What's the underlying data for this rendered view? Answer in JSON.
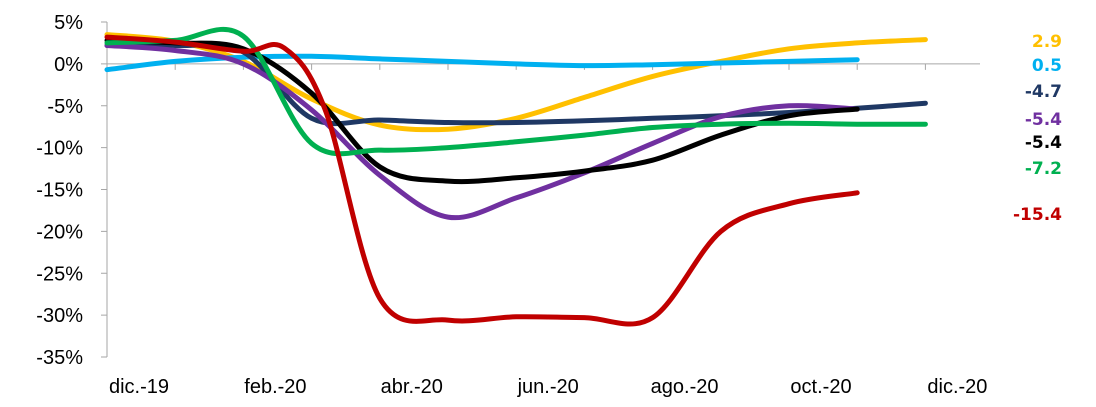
{
  "chart_data": {
    "type": "line",
    "title": "",
    "xlabel": "",
    "ylabel": "",
    "ylim": [
      -35,
      5
    ],
    "yticks": [
      5,
      0,
      -5,
      -10,
      -15,
      -20,
      -25,
      -30,
      -35
    ],
    "ytick_labels": [
      "5%",
      "0%",
      "-5%",
      "-10%",
      "-15%",
      "-20%",
      "-25%",
      "-30%",
      "-35%"
    ],
    "xlim": [
      0,
      12
    ],
    "xticks": [
      0,
      2,
      4,
      6,
      8,
      10,
      12
    ],
    "xtick_labels": [
      "dic.-19",
      "feb.-20",
      "abr.-20",
      "jun.-20",
      "ago.-20",
      "oct.-20",
      "dic.-20"
    ],
    "grid": false,
    "legend": "none",
    "series": [
      {
        "color": "#FFC000",
        "end_label": "2.9",
        "points": [
          [
            0,
            3.5
          ],
          [
            1,
            2.7
          ],
          [
            2,
            0.3
          ],
          [
            3,
            -4.2
          ],
          [
            4,
            -7.3
          ],
          [
            5,
            -7.8
          ],
          [
            6,
            -6.5
          ],
          [
            7,
            -4.0
          ],
          [
            8,
            -1.5
          ],
          [
            9,
            0.3
          ],
          [
            10,
            1.8
          ],
          [
            11,
            2.5
          ],
          [
            12,
            2.9
          ]
        ]
      },
      {
        "color": "#00B0F0",
        "end_label": "0.5",
        "points": [
          [
            0,
            -0.7
          ],
          [
            1,
            0.3
          ],
          [
            2,
            0.8
          ],
          [
            3,
            0.9
          ],
          [
            4,
            0.6
          ],
          [
            5,
            0.3
          ],
          [
            6,
            0.0
          ],
          [
            7,
            -0.2
          ],
          [
            8,
            -0.1
          ],
          [
            9,
            0.1
          ],
          [
            10,
            0.3
          ],
          [
            11,
            0.5
          ]
        ]
      },
      {
        "color": "#1F3864",
        "end_label": "-4.7",
        "points": [
          [
            0,
            2.2
          ],
          [
            1,
            2.2
          ],
          [
            2,
            1.4
          ],
          [
            3,
            -6.5
          ],
          [
            4,
            -6.7
          ],
          [
            5,
            -7.0
          ],
          [
            6,
            -7.0
          ],
          [
            7,
            -6.8
          ],
          [
            8,
            -6.5
          ],
          [
            9,
            -6.2
          ],
          [
            10,
            -5.8
          ],
          [
            11,
            -5.3
          ],
          [
            12,
            -4.7
          ]
        ]
      },
      {
        "color": "#7030A0",
        "end_label": "-5.4",
        "points": [
          [
            0,
            2.2
          ],
          [
            1,
            1.6
          ],
          [
            2,
            0.0
          ],
          [
            3,
            -5.5
          ],
          [
            4,
            -13.3
          ],
          [
            5,
            -18.3
          ],
          [
            6,
            -16.0
          ],
          [
            7,
            -13.0
          ],
          [
            8,
            -9.5
          ],
          [
            9,
            -6.3
          ],
          [
            10,
            -5.0
          ],
          [
            11,
            -5.4
          ]
        ]
      },
      {
        "color": "#000000",
        "end_label": "-5.4",
        "points": [
          [
            0,
            2.8
          ],
          [
            1,
            2.5
          ],
          [
            2,
            1.8
          ],
          [
            3,
            -3.5
          ],
          [
            4,
            -12.3
          ],
          [
            5,
            -14.0
          ],
          [
            6,
            -13.6
          ],
          [
            7,
            -12.8
          ],
          [
            8,
            -11.5
          ],
          [
            9,
            -8.5
          ],
          [
            10,
            -6.2
          ],
          [
            11,
            -5.4
          ]
        ]
      },
      {
        "color": "#00B050",
        "end_label": "-7.2",
        "points": [
          [
            0,
            2.5
          ],
          [
            1,
            2.8
          ],
          [
            2,
            3.3
          ],
          [
            3,
            -9.5
          ],
          [
            4,
            -10.3
          ],
          [
            5,
            -10.0
          ],
          [
            6,
            -9.3
          ],
          [
            7,
            -8.5
          ],
          [
            8,
            -7.6
          ],
          [
            9,
            -7.2
          ],
          [
            10,
            -7.1
          ],
          [
            11,
            -7.2
          ],
          [
            12,
            -7.2
          ]
        ]
      },
      {
        "color": "#C00000",
        "end_label": "-15.4",
        "points": [
          [
            0,
            3.2
          ],
          [
            1,
            2.6
          ],
          [
            2,
            1.5
          ],
          [
            2.6,
            1.9
          ],
          [
            3.2,
            -5.5
          ],
          [
            4,
            -28.0
          ],
          [
            5,
            -30.6
          ],
          [
            6,
            -30.2
          ],
          [
            7,
            -30.3
          ],
          [
            8,
            -30.3
          ],
          [
            9,
            -20.0
          ],
          [
            10,
            -16.7
          ],
          [
            11,
            -15.4
          ]
        ]
      }
    ]
  }
}
